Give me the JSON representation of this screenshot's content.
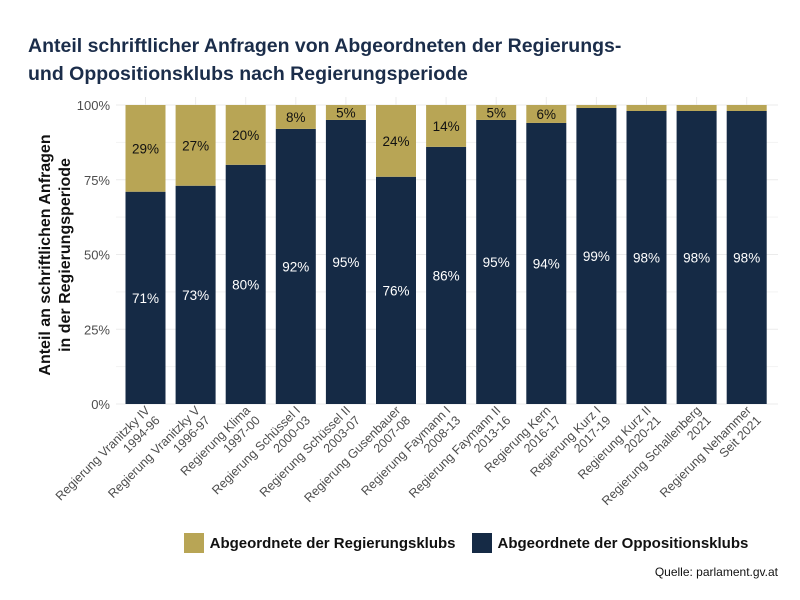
{
  "title_line1": "Anteil schriftlicher Anfragen von Abgeordneten der Regierungs-",
  "title_line2": "und Oppositionsklubs nach Regierungsperiode",
  "source": "Quelle: parlament.gv.at",
  "colors": {
    "regierung": "#b8a555",
    "opposition": "#152a45"
  },
  "chart_data": {
    "type": "bar",
    "stacked": true,
    "ylabel": "Anteil an schriftlichen Anfragen\nin der Regierungsperiode",
    "xlabel": "",
    "ylim": [
      0,
      100
    ],
    "yticks": [
      "0%",
      "25%",
      "50%",
      "75%",
      "100%"
    ],
    "grid": true,
    "legend_position": "bottom",
    "categories": [
      "Regierung Vranitzky IV\n1994-96",
      "Regierung Vranitzky V\n1996-97",
      "Regierung Klima\n1997-00",
      "Regierung Schüssel I\n2000-03",
      "Regierung Schüssel II\n2003-07",
      "Regierung Gusenbauer\n2007-08",
      "Regierung Faymann I\n2008-13",
      "Regierung Faymann II\n2013-16",
      "Regierung Kern\n2016-17",
      "Regierung Kurz I\n2017-19",
      "Regierung Kurz II\n2020-21",
      "Regierung Schallenberg\n2021",
      "Regierung Nehammer\nSeit 2021"
    ],
    "series": [
      {
        "name": "Abgeordnete der Oppositionsklubs",
        "values": [
          71,
          73,
          80,
          92,
          95,
          76,
          86,
          95,
          94,
          99,
          98,
          98,
          98
        ],
        "labels": [
          "71%",
          "73%",
          "80%",
          "92%",
          "95%",
          "76%",
          "86%",
          "95%",
          "94%",
          "99%",
          "98%",
          "98%",
          "98%"
        ]
      },
      {
        "name": "Abgeordnete der Regierungsklubs",
        "values": [
          29,
          27,
          20,
          8,
          5,
          24,
          14,
          5,
          6,
          1,
          2,
          2,
          2
        ],
        "labels": [
          "29%",
          "27%",
          "20%",
          "8%",
          "5%",
          "24%",
          "14%",
          "5%",
          "6%",
          "",
          "",
          "",
          ""
        ]
      }
    ]
  }
}
